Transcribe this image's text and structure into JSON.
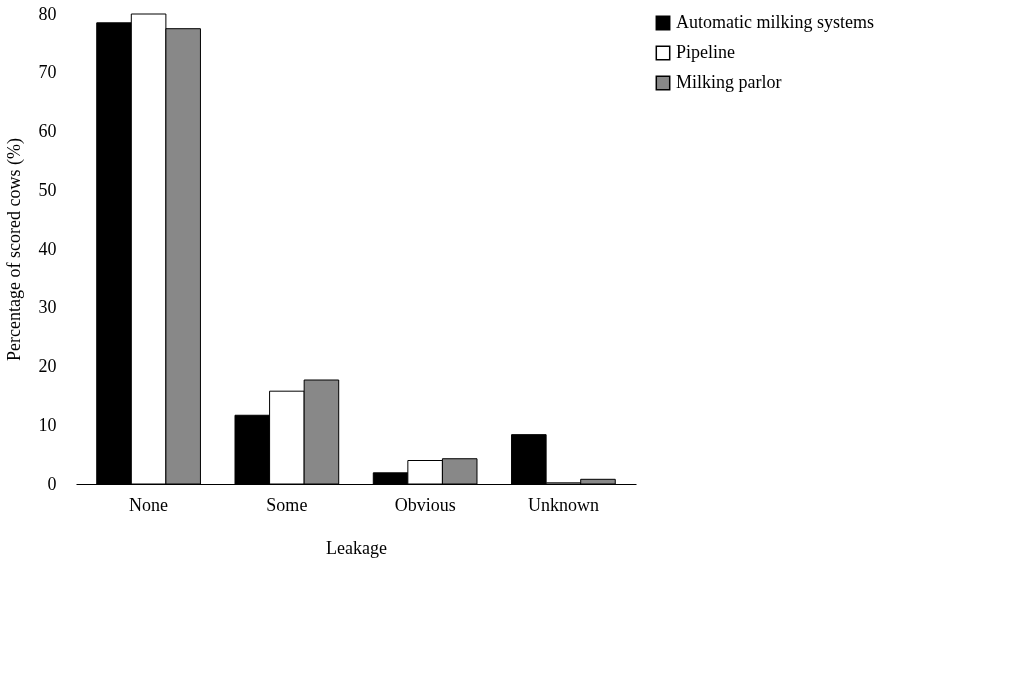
{
  "chart_data": {
    "type": "bar",
    "xlabel": "Leakage",
    "ylabel": "Percentage of scored cows (%)",
    "categories": [
      "None",
      "Some",
      "Obvious",
      "Unknown"
    ],
    "series": [
      {
        "name": "Automatic milking systems",
        "color": "#000000",
        "values": [
          78.5,
          11.7,
          1.9,
          8.4
        ]
      },
      {
        "name": "Pipeline",
        "color": "#ffffff",
        "values": [
          80,
          15.8,
          4.0,
          0.2
        ]
      },
      {
        "name": "Milking parlor",
        "color": "#888888",
        "values": [
          77.5,
          17.7,
          4.3,
          0.8
        ]
      }
    ],
    "ylim": [
      0,
      80
    ],
    "yticks": [
      0,
      10,
      20,
      30,
      40,
      50,
      60,
      70,
      80
    ],
    "grid": false,
    "legend": "right"
  }
}
